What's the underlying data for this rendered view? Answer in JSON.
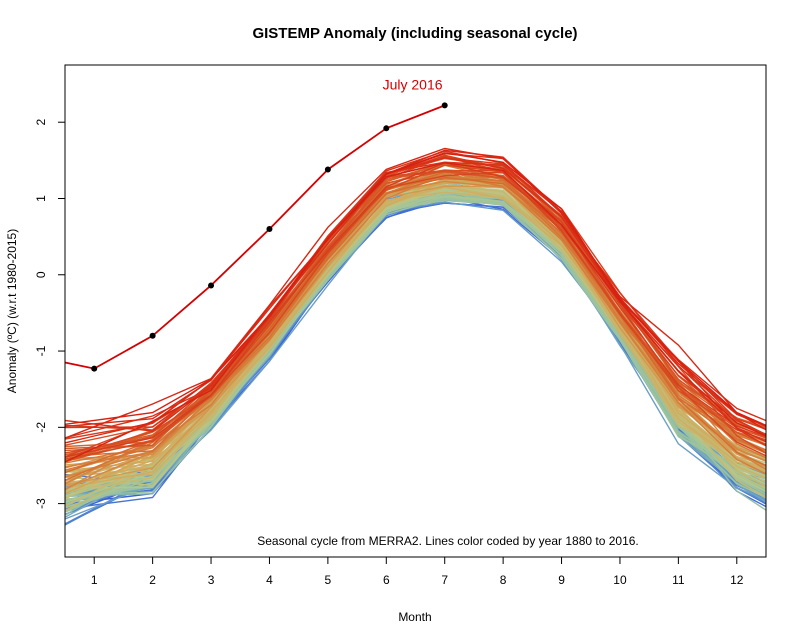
{
  "chart_data": {
    "type": "line",
    "title": "GISTEMP Anomaly (including seasonal cycle)",
    "xlabel": "Month",
    "ylabel": "Anomaly (ºC) (w.r.t 1980-2015)",
    "xlim": [
      0.5,
      12.5
    ],
    "ylim": [
      -3.7,
      2.75
    ],
    "x_ticks": [
      1,
      2,
      3,
      4,
      5,
      6,
      7,
      8,
      9,
      10,
      11,
      12
    ],
    "y_ticks": [
      -3,
      -2,
      -1,
      0,
      1,
      2
    ],
    "annotation": "Seasonal cycle from MERRA2. Lines color coded by year 1880 to 2016.",
    "grid": false,
    "legend": "none",
    "months": [
      1,
      2,
      3,
      4,
      5,
      6,
      7,
      8,
      9,
      10,
      11,
      12
    ],
    "seasonal_cycle": [
      -2.45,
      -2.25,
      -1.45,
      -0.55,
      0.45,
      1.3,
      1.5,
      1.42,
      0.75,
      -0.35,
      -1.55,
      -2.2
    ],
    "year_range": [
      1880,
      2016
    ],
    "color_scale": [
      "#3a5fd6",
      "#5b92d0",
      "#8fbfa6",
      "#b8c98a",
      "#d3a95a",
      "#d66a2e",
      "#d81f10"
    ],
    "highlight": {
      "label": "July 2016",
      "color": "#d40000",
      "x": [
        1,
        2,
        3,
        4,
        5,
        6,
        7
      ],
      "y": [
        -1.23,
        -0.8,
        -0.14,
        0.6,
        1.38,
        1.92,
        2.22
      ]
    }
  }
}
